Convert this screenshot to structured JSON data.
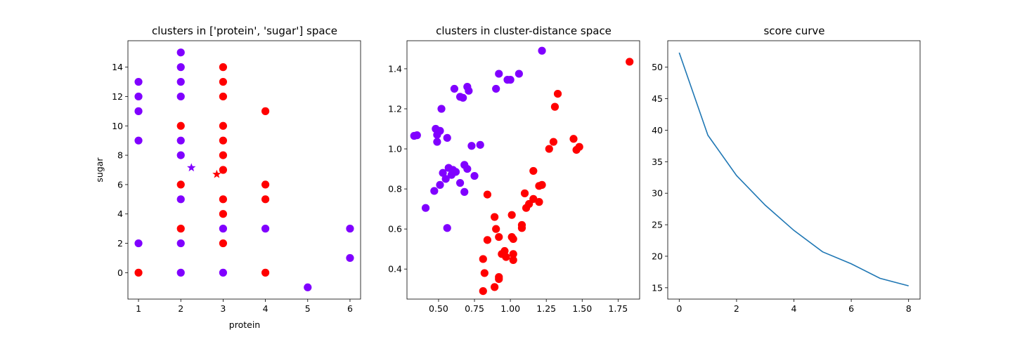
{
  "chart_data": [
    {
      "type": "scatter",
      "title": "clusters in ['protein', 'sugar'] space",
      "xlabel": "protein",
      "ylabel": "sugar",
      "xlim": [
        0.75,
        6.25
      ],
      "ylim": [
        -1.8,
        15.8
      ],
      "xticks": [
        1,
        2,
        3,
        4,
        5,
        6
      ],
      "yticks": [
        0,
        2,
        4,
        6,
        8,
        10,
        12,
        14
      ],
      "colors": {
        "cluster_0": "#8000ff",
        "cluster_1": "#ff0000"
      },
      "points": [
        {
          "x": 1,
          "y": 13,
          "cluster": 0
        },
        {
          "x": 1,
          "y": 12,
          "cluster": 0
        },
        {
          "x": 1,
          "y": 11,
          "cluster": 0
        },
        {
          "x": 1,
          "y": 9,
          "cluster": 0
        },
        {
          "x": 1,
          "y": 2,
          "cluster": 0
        },
        {
          "x": 1,
          "y": 0,
          "cluster": 1
        },
        {
          "x": 2,
          "y": 15,
          "cluster": 0
        },
        {
          "x": 2,
          "y": 14,
          "cluster": 0
        },
        {
          "x": 2,
          "y": 13,
          "cluster": 0
        },
        {
          "x": 2,
          "y": 12,
          "cluster": 0
        },
        {
          "x": 2,
          "y": 10,
          "cluster": 1
        },
        {
          "x": 2,
          "y": 9,
          "cluster": 0
        },
        {
          "x": 2,
          "y": 8,
          "cluster": 0
        },
        {
          "x": 2,
          "y": 6,
          "cluster": 1
        },
        {
          "x": 2,
          "y": 5,
          "cluster": 0
        },
        {
          "x": 2,
          "y": 3,
          "cluster": 1
        },
        {
          "x": 2,
          "y": 2,
          "cluster": 0
        },
        {
          "x": 2,
          "y": 0,
          "cluster": 0
        },
        {
          "x": 3,
          "y": 14,
          "cluster": 1
        },
        {
          "x": 3,
          "y": 13,
          "cluster": 1
        },
        {
          "x": 3,
          "y": 12,
          "cluster": 1
        },
        {
          "x": 3,
          "y": 10,
          "cluster": 1
        },
        {
          "x": 3,
          "y": 9,
          "cluster": 1
        },
        {
          "x": 3,
          "y": 8,
          "cluster": 1
        },
        {
          "x": 3,
          "y": 7,
          "cluster": 1
        },
        {
          "x": 3,
          "y": 5,
          "cluster": 1
        },
        {
          "x": 3,
          "y": 4,
          "cluster": 1
        },
        {
          "x": 3,
          "y": 3,
          "cluster": 0
        },
        {
          "x": 3,
          "y": 2,
          "cluster": 1
        },
        {
          "x": 3,
          "y": 0,
          "cluster": 0
        },
        {
          "x": 4,
          "y": 11,
          "cluster": 1
        },
        {
          "x": 4,
          "y": 6,
          "cluster": 1
        },
        {
          "x": 4,
          "y": 5,
          "cluster": 1
        },
        {
          "x": 4,
          "y": 3,
          "cluster": 0
        },
        {
          "x": 4,
          "y": 0,
          "cluster": 1
        },
        {
          "x": 5,
          "y": -1,
          "cluster": 0
        },
        {
          "x": 6,
          "y": 3,
          "cluster": 0
        },
        {
          "x": 6,
          "y": 1,
          "cluster": 0
        }
      ],
      "centroids": [
        {
          "x": 2.25,
          "y": 7.15,
          "cluster": 0
        },
        {
          "x": 2.85,
          "y": 6.7,
          "cluster": 1
        }
      ]
    },
    {
      "type": "scatter",
      "title": "clusters in cluster-distance space",
      "xlim": [
        0.28,
        1.9
      ],
      "ylim": [
        0.25,
        1.54
      ],
      "xticks": [
        0.5,
        0.75,
        1.0,
        1.25,
        1.5,
        1.75
      ],
      "xticklabels": [
        "0.50",
        "0.75",
        "1.00",
        "1.25",
        "1.50",
        "1.75"
      ],
      "yticks": [
        0.4,
        0.6,
        0.8,
        1.0,
        1.2,
        1.4
      ],
      "yticklabels": [
        "0.4",
        "0.6",
        "0.8",
        "1.0",
        "1.2",
        "1.4"
      ],
      "points": [
        {
          "x": 1.22,
          "y": 1.49,
          "cluster": 0
        },
        {
          "x": 0.92,
          "y": 1.375,
          "cluster": 0
        },
        {
          "x": 1.06,
          "y": 1.375,
          "cluster": 0
        },
        {
          "x": 0.98,
          "y": 1.345,
          "cluster": 0
        },
        {
          "x": 1.0,
          "y": 1.345,
          "cluster": 0
        },
        {
          "x": 0.7,
          "y": 1.31,
          "cluster": 0
        },
        {
          "x": 0.61,
          "y": 1.3,
          "cluster": 0
        },
        {
          "x": 0.9,
          "y": 1.3,
          "cluster": 0
        },
        {
          "x": 0.71,
          "y": 1.29,
          "cluster": 0
        },
        {
          "x": 0.65,
          "y": 1.26,
          "cluster": 0
        },
        {
          "x": 0.67,
          "y": 1.255,
          "cluster": 0
        },
        {
          "x": 0.52,
          "y": 1.2,
          "cluster": 0
        },
        {
          "x": 0.33,
          "y": 1.065,
          "cluster": 0
        },
        {
          "x": 0.35,
          "y": 1.068,
          "cluster": 0
        },
        {
          "x": 0.48,
          "y": 1.1,
          "cluster": 0
        },
        {
          "x": 0.51,
          "y": 1.09,
          "cluster": 0
        },
        {
          "x": 0.49,
          "y": 1.07,
          "cluster": 0
        },
        {
          "x": 0.56,
          "y": 1.055,
          "cluster": 0
        },
        {
          "x": 0.49,
          "y": 1.035,
          "cluster": 0
        },
        {
          "x": 0.73,
          "y": 1.015,
          "cluster": 0
        },
        {
          "x": 0.79,
          "y": 1.02,
          "cluster": 0
        },
        {
          "x": 0.53,
          "y": 0.88,
          "cluster": 0
        },
        {
          "x": 0.57,
          "y": 0.905,
          "cluster": 0
        },
        {
          "x": 0.6,
          "y": 0.895,
          "cluster": 0
        },
        {
          "x": 0.59,
          "y": 0.87,
          "cluster": 0
        },
        {
          "x": 0.62,
          "y": 0.885,
          "cluster": 0
        },
        {
          "x": 0.68,
          "y": 0.92,
          "cluster": 0
        },
        {
          "x": 0.7,
          "y": 0.9,
          "cluster": 0
        },
        {
          "x": 0.75,
          "y": 0.865,
          "cluster": 0
        },
        {
          "x": 0.55,
          "y": 0.85,
          "cluster": 0
        },
        {
          "x": 0.65,
          "y": 0.83,
          "cluster": 0
        },
        {
          "x": 0.51,
          "y": 0.82,
          "cluster": 0
        },
        {
          "x": 0.47,
          "y": 0.79,
          "cluster": 0
        },
        {
          "x": 0.68,
          "y": 0.785,
          "cluster": 0
        },
        {
          "x": 0.41,
          "y": 0.705,
          "cluster": 0
        },
        {
          "x": 0.56,
          "y": 0.605,
          "cluster": 0
        },
        {
          "x": 1.83,
          "y": 1.435,
          "cluster": 1
        },
        {
          "x": 1.33,
          "y": 1.275,
          "cluster": 1
        },
        {
          "x": 1.31,
          "y": 1.21,
          "cluster": 1
        },
        {
          "x": 1.44,
          "y": 1.05,
          "cluster": 1
        },
        {
          "x": 1.3,
          "y": 1.035,
          "cluster": 1
        },
        {
          "x": 1.48,
          "y": 1.01,
          "cluster": 1
        },
        {
          "x": 1.27,
          "y": 1.0,
          "cluster": 1
        },
        {
          "x": 1.46,
          "y": 0.995,
          "cluster": 1
        },
        {
          "x": 1.16,
          "y": 0.89,
          "cluster": 1
        },
        {
          "x": 1.22,
          "y": 0.82,
          "cluster": 1
        },
        {
          "x": 1.2,
          "y": 0.815,
          "cluster": 1
        },
        {
          "x": 1.1,
          "y": 0.778,
          "cluster": 1
        },
        {
          "x": 0.84,
          "y": 0.772,
          "cluster": 1
        },
        {
          "x": 1.16,
          "y": 0.75,
          "cluster": 1
        },
        {
          "x": 1.2,
          "y": 0.735,
          "cluster": 1
        },
        {
          "x": 1.13,
          "y": 0.725,
          "cluster": 1
        },
        {
          "x": 1.11,
          "y": 0.705,
          "cluster": 1
        },
        {
          "x": 1.01,
          "y": 0.67,
          "cluster": 1
        },
        {
          "x": 0.89,
          "y": 0.66,
          "cluster": 1
        },
        {
          "x": 1.08,
          "y": 0.62,
          "cluster": 1
        },
        {
          "x": 1.08,
          "y": 0.605,
          "cluster": 1
        },
        {
          "x": 0.9,
          "y": 0.6,
          "cluster": 1
        },
        {
          "x": 0.92,
          "y": 0.56,
          "cluster": 1
        },
        {
          "x": 1.01,
          "y": 0.56,
          "cluster": 1
        },
        {
          "x": 1.02,
          "y": 0.55,
          "cluster": 1
        },
        {
          "x": 0.84,
          "y": 0.545,
          "cluster": 1
        },
        {
          "x": 0.96,
          "y": 0.49,
          "cluster": 1
        },
        {
          "x": 0.94,
          "y": 0.475,
          "cluster": 1
        },
        {
          "x": 1.02,
          "y": 0.475,
          "cluster": 1
        },
        {
          "x": 0.97,
          "y": 0.46,
          "cluster": 1
        },
        {
          "x": 0.81,
          "y": 0.45,
          "cluster": 1
        },
        {
          "x": 1.02,
          "y": 0.445,
          "cluster": 1
        },
        {
          "x": 0.82,
          "y": 0.38,
          "cluster": 1
        },
        {
          "x": 0.92,
          "y": 0.36,
          "cluster": 1
        },
        {
          "x": 0.92,
          "y": 0.35,
          "cluster": 1
        },
        {
          "x": 0.89,
          "y": 0.31,
          "cluster": 1
        },
        {
          "x": 0.81,
          "y": 0.29,
          "cluster": 1
        }
      ]
    },
    {
      "type": "line",
      "title": "score curve",
      "xlim": [
        -0.4,
        8.4
      ],
      "ylim": [
        13.2,
        54.2
      ],
      "xticks": [
        0,
        2,
        4,
        6,
        8
      ],
      "yticks": [
        15,
        20,
        25,
        30,
        35,
        40,
        45,
        50
      ],
      "line_color": "#1f77b4",
      "x": [
        0,
        1,
        2,
        3,
        4,
        5,
        6,
        7,
        8
      ],
      "y": [
        52.3,
        39.2,
        32.8,
        28.1,
        24.1,
        20.7,
        18.8,
        16.5,
        15.3
      ]
    }
  ]
}
